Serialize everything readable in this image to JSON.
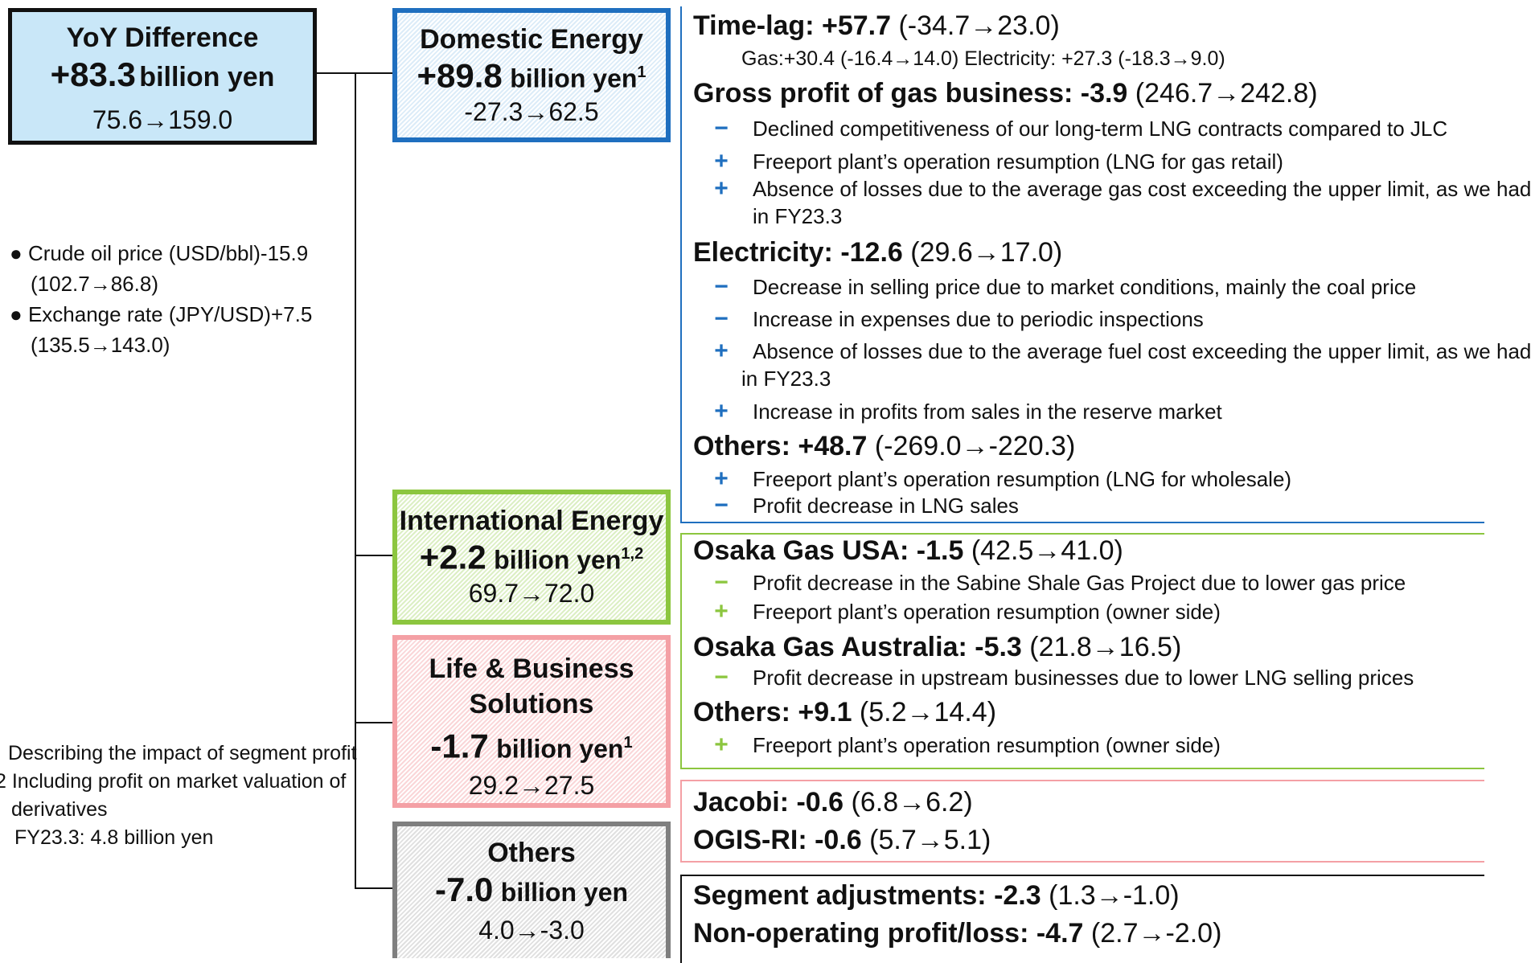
{
  "total": {
    "title": "YoY Difference",
    "value": "+83.3",
    "unit": "billion yen",
    "range": "75.6→159.0"
  },
  "macro": {
    "items": [
      {
        "label": "Crude oil price  (USD/bbl)-15.9",
        "range": "(102.7→86.8)"
      },
      {
        "label": "Exchange rate (JPY/USD)+7.5",
        "range": "(135.5→143.0)"
      }
    ]
  },
  "footnotes": {
    "n1": "Describing the impact of segment profit",
    "n2a": "2 Including profit on market valuation of",
    "n2b": "derivatives",
    "n2c": "FY23.3: 4.8 billion yen"
  },
  "segments": {
    "domestic": {
      "title": "Domestic Energy",
      "value": "+89.8",
      "unit": "billion yen",
      "sup": "1",
      "range": "-27.3→62.5"
    },
    "international": {
      "title": "International Energy",
      "value": "+2.2",
      "unit": "billion yen",
      "sup": "1,2",
      "range": "69.7→72.0"
    },
    "life": {
      "title1": "Life & Business",
      "title2": "Solutions",
      "value": "-1.7",
      "unit": "billion yen",
      "sup": "1",
      "range": "29.2→27.5"
    },
    "others": {
      "title": "Others",
      "value": "-7.0",
      "unit": "billion yen",
      "range": "4.0→-3.0"
    }
  },
  "domestic_detail": {
    "timelag": {
      "label": "Time-lag: ",
      "value": "+57.7",
      "range": " (-34.7→23.0)"
    },
    "timelag_sub": "Gas:+30.4 (-16.4→14.0)   Electricity: +27.3 (-18.3→9.0)",
    "gas": {
      "label": "Gross profit of gas business:  ",
      "value": "-3.9",
      "range": " (246.7→242.8)"
    },
    "gas_items": [
      {
        "sign": "−",
        "text": "Declined competitiveness of our long-term LNG contracts compared to JLC"
      },
      {
        "sign": "+",
        "text": "Freeport plant’s operation resumption (LNG for gas retail)"
      },
      {
        "sign": "+",
        "text": "Absence of losses due to the average gas cost exceeding the upper limit, as we had",
        "text2": "in FY23.3"
      }
    ],
    "elec": {
      "label": "Electricity:  ",
      "value": "-12.6",
      "range": " (29.6→17.0)"
    },
    "elec_items": [
      {
        "sign": "−",
        "text": "Decrease in selling price due to market conditions, mainly the coal price"
      },
      {
        "sign": "−",
        "text": "Increase in expenses due to periodic inspections"
      },
      {
        "sign": "+",
        "text": "Absence of losses due to the average fuel cost exceeding the upper limit, as we had",
        "text2": "in FY23.3"
      },
      {
        "sign": "+",
        "text": "Increase in profits from sales in the reserve market"
      }
    ],
    "others": {
      "label": "Others:  ",
      "value": "+48.7",
      "range": " (-269.0→-220.3)"
    },
    "others_items": [
      {
        "sign": "+",
        "text": "Freeport plant’s operation resumption (LNG for wholesale)"
      },
      {
        "sign": "−",
        "text": "Profit decrease in LNG sales"
      }
    ]
  },
  "international_detail": {
    "usa": {
      "label": "Osaka Gas USA: ",
      "value": "-1.5",
      "range": " (42.5→41.0)"
    },
    "usa_items": [
      {
        "sign": "−",
        "text": "Profit decrease in the Sabine Shale Gas Project due to lower gas price"
      },
      {
        "sign": "+",
        "text": "Freeport plant’s operation resumption (owner side)"
      }
    ],
    "aus": {
      "label": "Osaka Gas Australia: ",
      "value": "-5.3",
      "range": " (21.8→16.5)"
    },
    "aus_items": [
      {
        "sign": "−",
        "text": "Profit decrease in upstream businesses due to lower LNG selling prices"
      }
    ],
    "others": {
      "label": "Others:  ",
      "value": "+9.1",
      "range": " (5.2→14.4)"
    },
    "others_items": [
      {
        "sign": "+",
        "text": "Freeport plant’s operation resumption (owner side)"
      }
    ]
  },
  "life_detail": {
    "jacobi": {
      "label": "Jacobi: ",
      "value": "-0.6",
      "range": " (6.8→6.2)"
    },
    "ogis": {
      "label": "OGIS-RI: ",
      "value": "-0.6",
      "range": " (5.7→5.1)"
    }
  },
  "others_detail": {
    "seg": {
      "label": "Segment adjustments: ",
      "value": "-2.3",
      "range": " (1.3→-1.0)"
    },
    "nonop": {
      "label": "Non-operating profit/loss: ",
      "value": "-4.7",
      "range": " (2.7→-2.0)"
    }
  },
  "colors": {
    "blue": "#1f6fbf",
    "green": "#8cc63f",
    "red": "#f4a0a5",
    "grey": "#7f7f7f",
    "total_fill": "#c9e7f8"
  }
}
